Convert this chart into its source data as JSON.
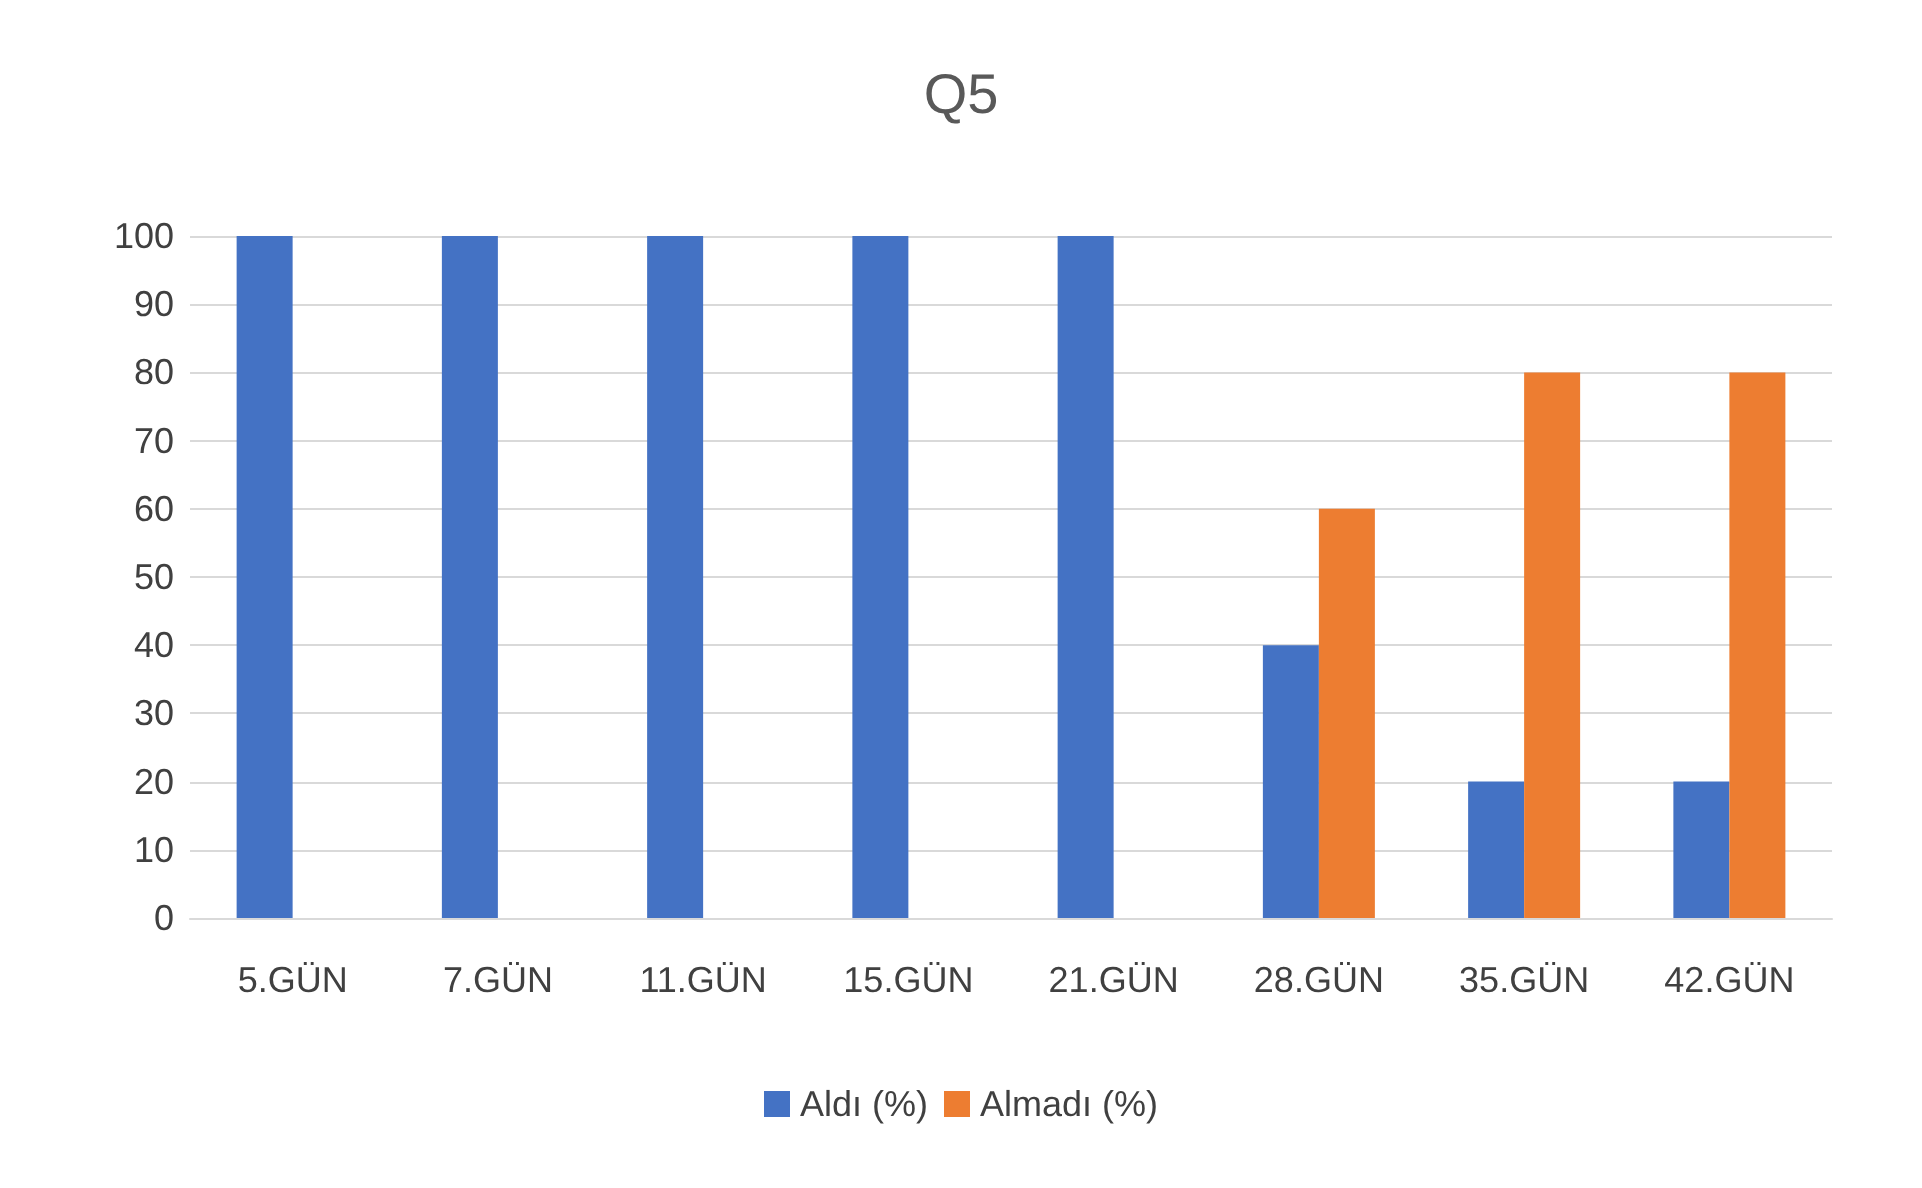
{
  "chart_data": {
    "type": "bar",
    "title": "Q5",
    "categories": [
      "5.GÜN",
      "7.GÜN",
      "11.GÜN",
      "15.GÜN",
      "21.GÜN",
      "28.GÜN",
      "35.GÜN",
      "42.GÜN"
    ],
    "series": [
      {
        "name": "Aldı (%)",
        "color": "#4472c4",
        "values": [
          100,
          100,
          100,
          100,
          100,
          40,
          20,
          20
        ]
      },
      {
        "name": "Almadı (%)",
        "color": "#ed7d31",
        "values": [
          0,
          0,
          0,
          0,
          0,
          60,
          80,
          80
        ]
      }
    ],
    "ylim": [
      0,
      100
    ],
    "yticks": [
      0,
      10,
      20,
      30,
      40,
      50,
      60,
      70,
      80,
      90,
      100
    ],
    "grid": "y",
    "legend": "bottom"
  }
}
